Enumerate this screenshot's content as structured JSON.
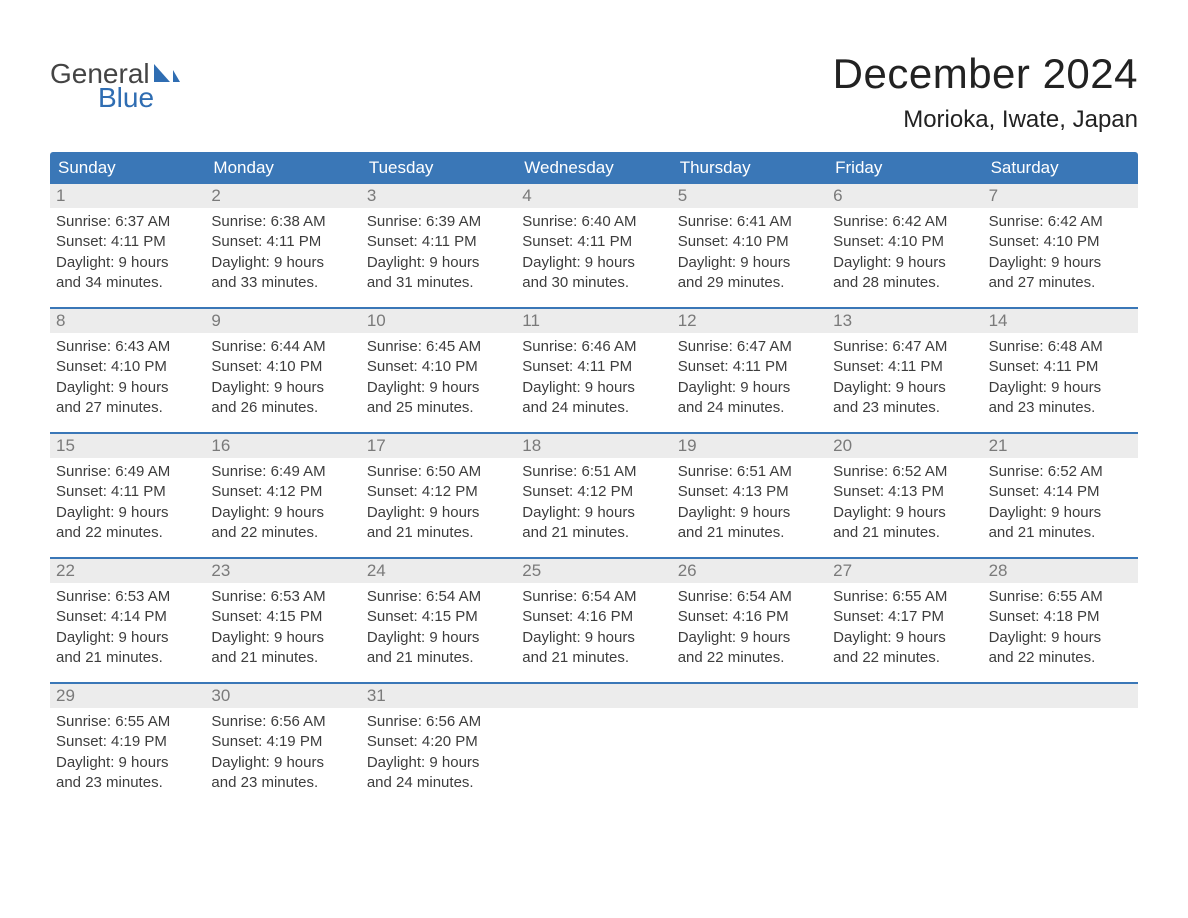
{
  "logo": {
    "word1": "General",
    "word2": "Blue",
    "sail_color": "#2f6db2",
    "text_gray": "#444444"
  },
  "title": "December 2024",
  "location": "Morioka, Iwate, Japan",
  "colors": {
    "header_bg": "#3a77b7",
    "header_text": "#ffffff",
    "daynum_bg": "#ececec",
    "daynum_text": "#7a7a7a",
    "body_text": "#3d3d3d",
    "rule": "#3a77b7",
    "page_bg": "#ffffff"
  },
  "days_of_week": [
    "Sunday",
    "Monday",
    "Tuesday",
    "Wednesday",
    "Thursday",
    "Friday",
    "Saturday"
  ],
  "weeks": [
    [
      {
        "n": "1",
        "sr": "Sunrise: 6:37 AM",
        "ss": "Sunset: 4:11 PM",
        "d1": "Daylight: 9 hours",
        "d2": "and 34 minutes."
      },
      {
        "n": "2",
        "sr": "Sunrise: 6:38 AM",
        "ss": "Sunset: 4:11 PM",
        "d1": "Daylight: 9 hours",
        "d2": "and 33 minutes."
      },
      {
        "n": "3",
        "sr": "Sunrise: 6:39 AM",
        "ss": "Sunset: 4:11 PM",
        "d1": "Daylight: 9 hours",
        "d2": "and 31 minutes."
      },
      {
        "n": "4",
        "sr": "Sunrise: 6:40 AM",
        "ss": "Sunset: 4:11 PM",
        "d1": "Daylight: 9 hours",
        "d2": "and 30 minutes."
      },
      {
        "n": "5",
        "sr": "Sunrise: 6:41 AM",
        "ss": "Sunset: 4:10 PM",
        "d1": "Daylight: 9 hours",
        "d2": "and 29 minutes."
      },
      {
        "n": "6",
        "sr": "Sunrise: 6:42 AM",
        "ss": "Sunset: 4:10 PM",
        "d1": "Daylight: 9 hours",
        "d2": "and 28 minutes."
      },
      {
        "n": "7",
        "sr": "Sunrise: 6:42 AM",
        "ss": "Sunset: 4:10 PM",
        "d1": "Daylight: 9 hours",
        "d2": "and 27 minutes."
      }
    ],
    [
      {
        "n": "8",
        "sr": "Sunrise: 6:43 AM",
        "ss": "Sunset: 4:10 PM",
        "d1": "Daylight: 9 hours",
        "d2": "and 27 minutes."
      },
      {
        "n": "9",
        "sr": "Sunrise: 6:44 AM",
        "ss": "Sunset: 4:10 PM",
        "d1": "Daylight: 9 hours",
        "d2": "and 26 minutes."
      },
      {
        "n": "10",
        "sr": "Sunrise: 6:45 AM",
        "ss": "Sunset: 4:10 PM",
        "d1": "Daylight: 9 hours",
        "d2": "and 25 minutes."
      },
      {
        "n": "11",
        "sr": "Sunrise: 6:46 AM",
        "ss": "Sunset: 4:11 PM",
        "d1": "Daylight: 9 hours",
        "d2": "and 24 minutes."
      },
      {
        "n": "12",
        "sr": "Sunrise: 6:47 AM",
        "ss": "Sunset: 4:11 PM",
        "d1": "Daylight: 9 hours",
        "d2": "and 24 minutes."
      },
      {
        "n": "13",
        "sr": "Sunrise: 6:47 AM",
        "ss": "Sunset: 4:11 PM",
        "d1": "Daylight: 9 hours",
        "d2": "and 23 minutes."
      },
      {
        "n": "14",
        "sr": "Sunrise: 6:48 AM",
        "ss": "Sunset: 4:11 PM",
        "d1": "Daylight: 9 hours",
        "d2": "and 23 minutes."
      }
    ],
    [
      {
        "n": "15",
        "sr": "Sunrise: 6:49 AM",
        "ss": "Sunset: 4:11 PM",
        "d1": "Daylight: 9 hours",
        "d2": "and 22 minutes."
      },
      {
        "n": "16",
        "sr": "Sunrise: 6:49 AM",
        "ss": "Sunset: 4:12 PM",
        "d1": "Daylight: 9 hours",
        "d2": "and 22 minutes."
      },
      {
        "n": "17",
        "sr": "Sunrise: 6:50 AM",
        "ss": "Sunset: 4:12 PM",
        "d1": "Daylight: 9 hours",
        "d2": "and 21 minutes."
      },
      {
        "n": "18",
        "sr": "Sunrise: 6:51 AM",
        "ss": "Sunset: 4:12 PM",
        "d1": "Daylight: 9 hours",
        "d2": "and 21 minutes."
      },
      {
        "n": "19",
        "sr": "Sunrise: 6:51 AM",
        "ss": "Sunset: 4:13 PM",
        "d1": "Daylight: 9 hours",
        "d2": "and 21 minutes."
      },
      {
        "n": "20",
        "sr": "Sunrise: 6:52 AM",
        "ss": "Sunset: 4:13 PM",
        "d1": "Daylight: 9 hours",
        "d2": "and 21 minutes."
      },
      {
        "n": "21",
        "sr": "Sunrise: 6:52 AM",
        "ss": "Sunset: 4:14 PM",
        "d1": "Daylight: 9 hours",
        "d2": "and 21 minutes."
      }
    ],
    [
      {
        "n": "22",
        "sr": "Sunrise: 6:53 AM",
        "ss": "Sunset: 4:14 PM",
        "d1": "Daylight: 9 hours",
        "d2": "and 21 minutes."
      },
      {
        "n": "23",
        "sr": "Sunrise: 6:53 AM",
        "ss": "Sunset: 4:15 PM",
        "d1": "Daylight: 9 hours",
        "d2": "and 21 minutes."
      },
      {
        "n": "24",
        "sr": "Sunrise: 6:54 AM",
        "ss": "Sunset: 4:15 PM",
        "d1": "Daylight: 9 hours",
        "d2": "and 21 minutes."
      },
      {
        "n": "25",
        "sr": "Sunrise: 6:54 AM",
        "ss": "Sunset: 4:16 PM",
        "d1": "Daylight: 9 hours",
        "d2": "and 21 minutes."
      },
      {
        "n": "26",
        "sr": "Sunrise: 6:54 AM",
        "ss": "Sunset: 4:16 PM",
        "d1": "Daylight: 9 hours",
        "d2": "and 22 minutes."
      },
      {
        "n": "27",
        "sr": "Sunrise: 6:55 AM",
        "ss": "Sunset: 4:17 PM",
        "d1": "Daylight: 9 hours",
        "d2": "and 22 minutes."
      },
      {
        "n": "28",
        "sr": "Sunrise: 6:55 AM",
        "ss": "Sunset: 4:18 PM",
        "d1": "Daylight: 9 hours",
        "d2": "and 22 minutes."
      }
    ],
    [
      {
        "n": "29",
        "sr": "Sunrise: 6:55 AM",
        "ss": "Sunset: 4:19 PM",
        "d1": "Daylight: 9 hours",
        "d2": "and 23 minutes."
      },
      {
        "n": "30",
        "sr": "Sunrise: 6:56 AM",
        "ss": "Sunset: 4:19 PM",
        "d1": "Daylight: 9 hours",
        "d2": "and 23 minutes."
      },
      {
        "n": "31",
        "sr": "Sunrise: 6:56 AM",
        "ss": "Sunset: 4:20 PM",
        "d1": "Daylight: 9 hours",
        "d2": "and 24 minutes."
      },
      null,
      null,
      null,
      null
    ]
  ]
}
